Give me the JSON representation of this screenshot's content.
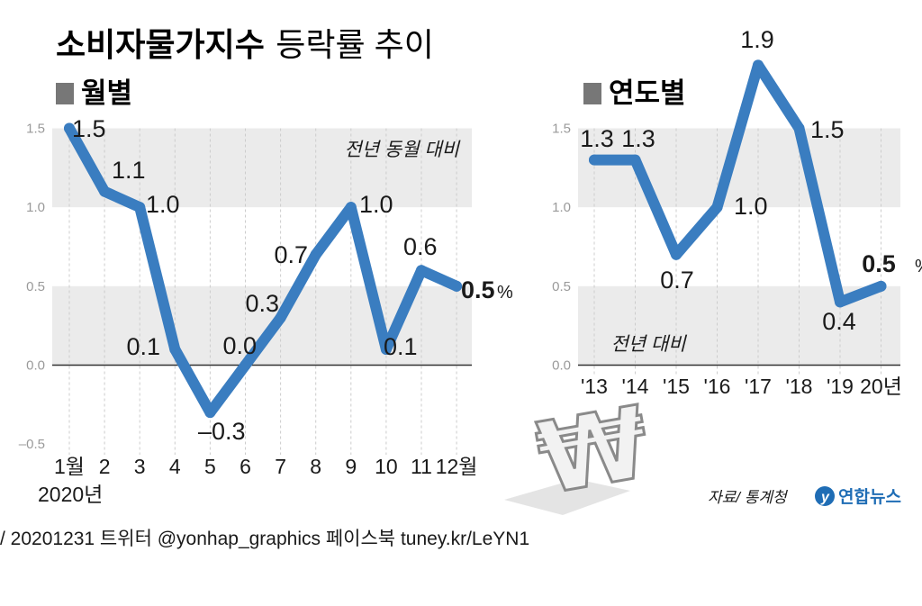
{
  "title": {
    "main": "소비자물가지수",
    "sub": "등락률 추이"
  },
  "source": "자료/ 통계청",
  "brand": "연합뉴스",
  "footer": "/ 20201231   트위터 @yonhap_graphics  페이스북 tuney.kr/LeYN1",
  "colors": {
    "line": "#3a7dc0",
    "band": "#ebebeb",
    "axis": "#333333",
    "grid": "#cccccc"
  },
  "chart_data": [
    {
      "type": "line",
      "section_label": "월별",
      "note": "전년 동월 대비",
      "unit": "%",
      "categories": [
        "1월",
        "2",
        "3",
        "4",
        "5",
        "6",
        "7",
        "8",
        "9",
        "10",
        "11",
        "12월"
      ],
      "sub_label": "2020년",
      "values": [
        1.5,
        1.1,
        1.0,
        0.1,
        -0.3,
        0.0,
        0.3,
        0.7,
        1.0,
        0.1,
        0.6,
        0.5
      ],
      "value_labels": [
        "1.5",
        "1.1",
        "1.0",
        "0.1",
        "–0.3",
        "0.0",
        "0.3",
        "0.7",
        "1.0",
        "0.1",
        "0.6",
        "0.5"
      ],
      "y_ticks": [
        "1.5",
        "1.0",
        "0.5",
        "0.0",
        "–0.5"
      ],
      "ylim": [
        -0.5,
        1.5
      ]
    },
    {
      "type": "line",
      "section_label": "연도별",
      "note": "전년 대비",
      "unit": "%",
      "categories": [
        "'13",
        "'14",
        "'15",
        "'16",
        "'17",
        "'18",
        "'19",
        "20년"
      ],
      "values": [
        1.3,
        1.3,
        0.7,
        1.0,
        1.9,
        1.5,
        0.4,
        0.5
      ],
      "value_labels": [
        "1.3",
        "1.3",
        "0.7",
        "1.0",
        "1.9",
        "1.5",
        "0.4",
        "0.5"
      ],
      "y_ticks": [
        "1.5",
        "1.0",
        "0.5",
        "0.0"
      ],
      "ylim": [
        0,
        1.5
      ]
    }
  ]
}
